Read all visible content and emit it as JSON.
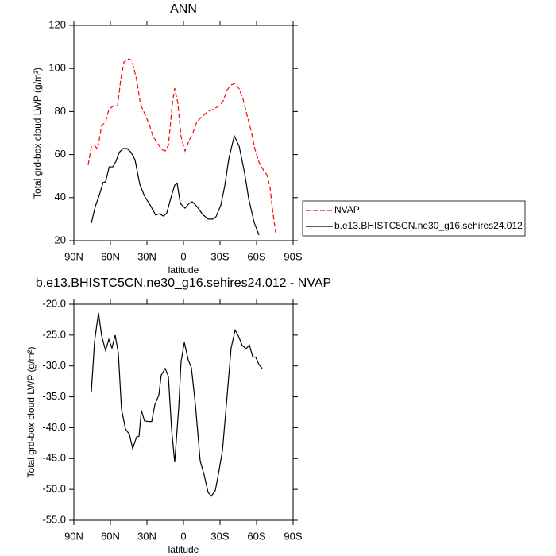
{
  "chart_data": [
    {
      "type": "line",
      "title": "ANN",
      "x_label": "latitude",
      "y_label": "Total grd-box cloud LWP (g/m²)",
      "xlim": [
        90,
        -90
      ],
      "xticks": [
        {
          "value": 90,
          "label": "90N"
        },
        {
          "value": 60,
          "label": "60N"
        },
        {
          "value": 30,
          "label": "30N"
        },
        0,
        {
          "value": -30,
          "label": "30S"
        },
        {
          "value": -60,
          "label": "60S"
        },
        {
          "value": -90,
          "label": "90S"
        }
      ],
      "ylim": [
        20,
        120
      ],
      "yticks": [
        20,
        40,
        60,
        80,
        100,
        120
      ],
      "legend": "outside right",
      "series": [
        {
          "name": "NVAP",
          "color": "#ff0000",
          "linestyle": "dashed",
          "x": [
            78.3,
            75.7,
            73,
            70.5,
            67.2,
            64,
            61.3,
            57.4,
            54.1,
            51.5,
            48.9,
            45,
            42.4,
            38.5,
            35.2,
            31.3,
            28,
            24.8,
            21.5,
            18.3,
            15,
            12.4,
            9.1,
            7.2,
            4.6,
            2,
            -1.3,
            -4.6,
            -7.8,
            -11.1,
            -15.7,
            -20.2,
            -25.4,
            -29.4,
            -32.6,
            -35.9,
            -39.1,
            -42.4,
            -45.7,
            -48.9,
            -52.2,
            -55.4,
            -58.7,
            -62,
            -65.2,
            -68.5,
            -71.1,
            -73.1,
            -75.7
          ],
          "values": [
            55.1,
            63.5,
            64.3,
            62.4,
            73.5,
            75,
            80.9,
            82.7,
            82.7,
            94.9,
            103,
            104.5,
            103.8,
            94.9,
            83.1,
            78.3,
            73.9,
            68,
            65.8,
            62.4,
            61.7,
            64.3,
            83.8,
            90.8,
            83.8,
            68.3,
            61.7,
            66.5,
            70.2,
            75.4,
            77.9,
            80.1,
            81.3,
            82.7,
            84.9,
            90.1,
            92.3,
            93.1,
            90.5,
            85.7,
            78.3,
            71.3,
            62.4,
            56.5,
            53.2,
            50.6,
            44.7,
            34.4,
            23.7
          ]
        },
        {
          "name": "b.e13.BHISTC5CN.ne30_g16.sehires24.012",
          "color": "#000000",
          "linestyle": "solid",
          "x": [
            75.7,
            72.4,
            69,
            66,
            64,
            61,
            58,
            55.4,
            52.8,
            49.6,
            46.3,
            43,
            39.8,
            35.9,
            32,
            26.7,
            22.8,
            20.2,
            16.3,
            13.7,
            9.8,
            7.2,
            5.2,
            2.6,
            -1.3,
            -4.6,
            -7.2,
            -11,
            -15.7,
            -20.2,
            -24.1,
            -26.7,
            -30.7,
            -33.9,
            -37.2,
            -41.7,
            -45.7,
            -50.2,
            -53.5,
            -58,
            -62
          ],
          "values": [
            28.1,
            35.9,
            41.4,
            47,
            47.3,
            54.3,
            54.3,
            56.9,
            61,
            62.8,
            62.8,
            61,
            57.6,
            46.2,
            40.7,
            35.9,
            31.8,
            32.5,
            31.4,
            32.9,
            41,
            45.8,
            46.6,
            37.3,
            35.1,
            37.3,
            38.1,
            35.9,
            32.2,
            30,
            30,
            31.1,
            36.6,
            45.5,
            58,
            68.7,
            63.9,
            51.4,
            39.6,
            28.5,
            22.6
          ]
        }
      ]
    },
    {
      "type": "line",
      "title": "b.e13.BHISTC5CN.ne30_g16.sehires24.012 - NVAP",
      "x_label": "latitude",
      "y_label": "Total grd-box cloud LWP (g/m²)",
      "xlim": [
        90,
        -90
      ],
      "xticks": [
        {
          "value": 90,
          "label": "90N"
        },
        {
          "value": 60,
          "label": "60N"
        },
        {
          "value": 30,
          "label": "30N"
        },
        0,
        {
          "value": -30,
          "label": "30S"
        },
        {
          "value": -60,
          "label": "60S"
        },
        {
          "value": -90,
          "label": "90S"
        }
      ],
      "ylim": [
        -55,
        -20
      ],
      "yticks": [
        {
          "value": -55,
          "label": "-55.0"
        },
        {
          "value": -50,
          "label": "-50.0"
        },
        {
          "value": -45,
          "label": "-45.0"
        },
        {
          "value": -40,
          "label": "-40.0"
        },
        {
          "value": -35,
          "label": "-35.0"
        },
        {
          "value": -30,
          "label": "-30.0"
        },
        {
          "value": -25,
          "label": "-25.0"
        },
        {
          "value": -20,
          "label": "-20.0"
        }
      ],
      "series": [
        {
          "color": "#000000",
          "linestyle": "solid",
          "x": [
            75.7,
            73,
            69.8,
            67.2,
            64,
            61.3,
            58.7,
            56.1,
            53.5,
            50.9,
            47.6,
            44.4,
            41.7,
            38.5,
            36.5,
            34.6,
            32,
            28.7,
            26.1,
            23.5,
            20.2,
            18.3,
            15,
            12.4,
            9.8,
            7.2,
            3.9,
            2,
            -0.7,
            -3.9,
            -6.5,
            -9.8,
            -13.7,
            -17,
            -20.2,
            -22.8,
            -26.1,
            -28.7,
            -32,
            -35.2,
            -39.1,
            -42.4,
            -45,
            -48.3,
            -51.5,
            -54.1,
            -56.8,
            -59.4,
            -62,
            -64.6
          ],
          "values": [
            -34.3,
            -26,
            -21.4,
            -25.1,
            -27.5,
            -25.7,
            -27.1,
            -25,
            -27.9,
            -37,
            -40.2,
            -41.1,
            -43.4,
            -41.5,
            -41.4,
            -37.2,
            -38.9,
            -39,
            -39,
            -36.3,
            -34.7,
            -31.5,
            -30.4,
            -31.7,
            -40.2,
            -45.6,
            -36.7,
            -29.3,
            -26.2,
            -29,
            -30.3,
            -36.3,
            -45.4,
            -47.7,
            -50.5,
            -51.1,
            -50.2,
            -47.5,
            -43.7,
            -36.3,
            -27.1,
            -24.2,
            -25.1,
            -26.7,
            -27.2,
            -26.6,
            -28.5,
            -28.6,
            -29.8,
            -30.4
          ]
        }
      ]
    }
  ]
}
